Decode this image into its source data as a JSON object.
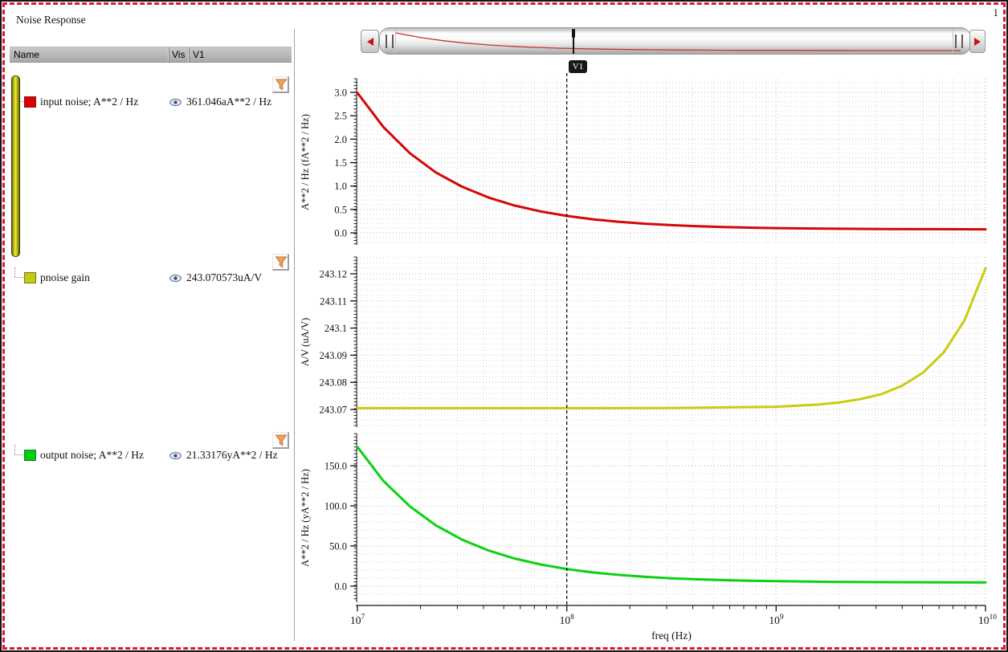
{
  "window": {
    "title": "Noise Response",
    "page_indicator": "1"
  },
  "table": {
    "headers": [
      "Name",
      "Vis",
      "V1"
    ],
    "rows": [
      {
        "name": "input noise; A**2 / Hz",
        "swatch_color": "#dd0000",
        "visible": true,
        "v1_value": "361.046aA**2 / Hz"
      },
      {
        "name": "pnoise gain",
        "swatch_color": "#c3cc0d",
        "visible": true,
        "v1_value": "243.070573uA/V"
      },
      {
        "name": "output noise; A**2 / Hz",
        "swatch_color": "#00cf10",
        "visible": true,
        "v1_value": "21.33176yA**2 / Hz"
      }
    ]
  },
  "slider": {
    "marker_label": "V1"
  },
  "cursor": {
    "label": "V1",
    "freq": 100000000.0
  },
  "chart_data": [
    {
      "type": "line",
      "xscale": "log",
      "xlim": [
        10000000.0,
        10000000000.0
      ],
      "ylim": [
        0,
        3
      ],
      "ytick_values": [
        0,
        0.5,
        1,
        1.5,
        2,
        2.5,
        3
      ],
      "ytick_labels": [
        "0.0",
        "0.5",
        "1.0",
        "1.5",
        "2.0",
        "2.5",
        "3.0"
      ],
      "ylabel": "A**2 / Hz (fA**2 / Hz)",
      "grid": "dotted",
      "cursor_readout": "361.046aA**2 / Hz",
      "series": [
        {
          "name": "input noise; A**2 / Hz",
          "color": "#d40808",
          "points": [
            [
              10000000.0,
              2.99
            ],
            [
              13300000.0,
              2.26
            ],
            [
              17800000.0,
              1.7
            ],
            [
              23700000.0,
              1.29
            ],
            [
              31600000.0,
              0.985
            ],
            [
              42200000.0,
              0.756
            ],
            [
              56200000.0,
              0.585
            ],
            [
              75000000.0,
              0.457
            ],
            [
              100000000.0,
              0.361
            ],
            [
              133000000.0,
              0.289
            ],
            [
              178000000.0,
              0.235
            ],
            [
              237000000.0,
              0.195
            ],
            [
              316000000.0,
              0.164
            ],
            [
              422000000.0,
              0.142
            ],
            [
              562000000.0,
              0.125
            ],
            [
              750000000.0,
              0.112
            ],
            [
              1000000000.0,
              0.102
            ],
            [
              1780000000.0,
              0.09
            ],
            [
              3160000000.0,
              0.082
            ],
            [
              5620000000.0,
              0.078
            ],
            [
              10000000000.0,
              0.076
            ]
          ]
        }
      ]
    },
    {
      "type": "line",
      "xscale": "log",
      "xlim": [
        10000000.0,
        10000000000.0
      ],
      "ylim": [
        243.07,
        243.12
      ],
      "ytick_values": [
        243.07,
        243.08,
        243.09,
        243.1,
        243.11,
        243.12
      ],
      "ytick_labels": [
        "243.07",
        "243.08",
        "243.09",
        "243.1",
        "243.11",
        "243.12"
      ],
      "ylabel": "A/V (uA/V)",
      "grid": "dotted",
      "cursor_readout": "243.070573uA/V",
      "series": [
        {
          "name": "pnoise gain",
          "color": "#c9cc10",
          "points": [
            [
              10000000.0,
              243.0705
            ],
            [
              100000000.0,
              243.0705
            ],
            [
              316000000.0,
              243.07055
            ],
            [
              1000000000.0,
              243.07102
            ],
            [
              1580000000.0,
              243.0718
            ],
            [
              2000000000.0,
              243.0726
            ],
            [
              2510000000.0,
              243.0738
            ],
            [
              3160000000.0,
              243.0756
            ],
            [
              3980000000.0,
              243.0787
            ],
            [
              5010000000.0,
              243.0835
            ],
            [
              6310000000.0,
              243.091
            ],
            [
              7940000000.0,
              243.1029
            ],
            [
              10000000000.0,
              243.122
            ]
          ]
        }
      ]
    },
    {
      "type": "line",
      "xscale": "log",
      "xlim": [
        10000000.0,
        10000000000.0
      ],
      "ylim": [
        0,
        150
      ],
      "ytick_values": [
        0,
        50,
        100,
        150
      ],
      "ytick_labels": [
        "0.0",
        "50.0",
        "100.0",
        "150.0"
      ],
      "ylabel": "A**2 / Hz (yA**2 / Hz)",
      "grid": "dotted",
      "xlabel": "freq (Hz)",
      "xticks": [
        {
          "mantissa": "10",
          "exp": "7"
        },
        {
          "mantissa": "10",
          "exp": "8"
        },
        {
          "mantissa": "10",
          "exp": "9"
        },
        {
          "mantissa": "10",
          "exp": "10"
        }
      ],
      "cursor_readout": "21.33176yA**2 / Hz",
      "series": [
        {
          "name": "output noise; A**2 / Hz",
          "color": "#0bd113",
          "points": [
            [
              10000000.0,
              173.3
            ],
            [
              13300000.0,
              131.1
            ],
            [
              17800000.0,
              99.4
            ],
            [
              23700000.0,
              75.7
            ],
            [
              31600000.0,
              57.9
            ],
            [
              42200000.0,
              44.5
            ],
            [
              56200000.0,
              34.5
            ],
            [
              75000000.0,
              27.0
            ],
            [
              100000000.0,
              21.33
            ],
            [
              133000000.0,
              17.1
            ],
            [
              178000000.0,
              14.0
            ],
            [
              237000000.0,
              11.6
            ],
            [
              316000000.0,
              9.8
            ],
            [
              422000000.0,
              8.5
            ],
            [
              562000000.0,
              7.5
            ],
            [
              750000000.0,
              6.7
            ],
            [
              1000000000.0,
              6.2
            ],
            [
              1780000000.0,
              5.4
            ],
            [
              3160000000.0,
              5.0
            ],
            [
              5620000000.0,
              4.8
            ],
            [
              10000000000.0,
              4.6
            ]
          ]
        }
      ]
    }
  ]
}
